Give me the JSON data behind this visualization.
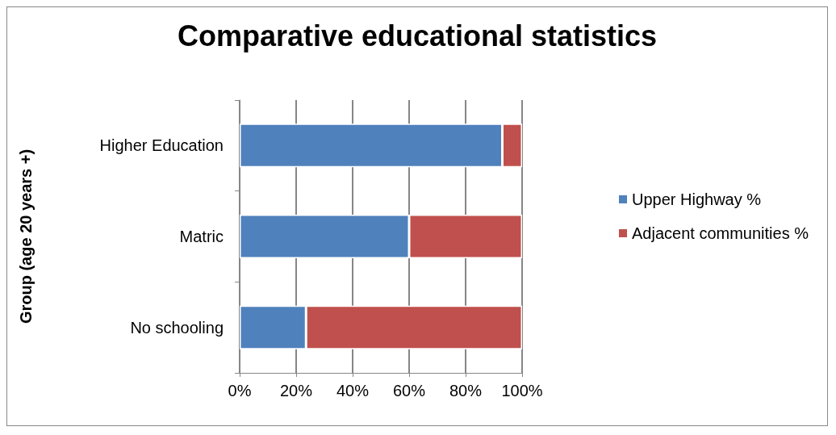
{
  "chart_data": {
    "type": "bar",
    "title": "Comparative educational statistics",
    "ylabel": "Group (age 20 years +)",
    "orientation": "horizontal",
    "stacked": true,
    "categories": [
      "Higher Education",
      "Matric",
      "No schooling"
    ],
    "series": [
      {
        "name": "Upper Highway %",
        "color": "#4f81bd",
        "values": [
          93,
          60,
          23.5
        ]
      },
      {
        "name": "Adjacent communities %",
        "color": "#c0504d",
        "values": [
          7,
          40,
          76.5
        ]
      }
    ],
    "xlim": [
      0,
      100
    ],
    "xticks": [
      {
        "value": 0,
        "label": "0%"
      },
      {
        "value": 20,
        "label": "20%"
      },
      {
        "value": 40,
        "label": "40%"
      },
      {
        "value": 60,
        "label": "60%"
      },
      {
        "value": 80,
        "label": "80%"
      },
      {
        "value": 100,
        "label": "100%"
      }
    ],
    "grid": "x",
    "legend": "right"
  }
}
